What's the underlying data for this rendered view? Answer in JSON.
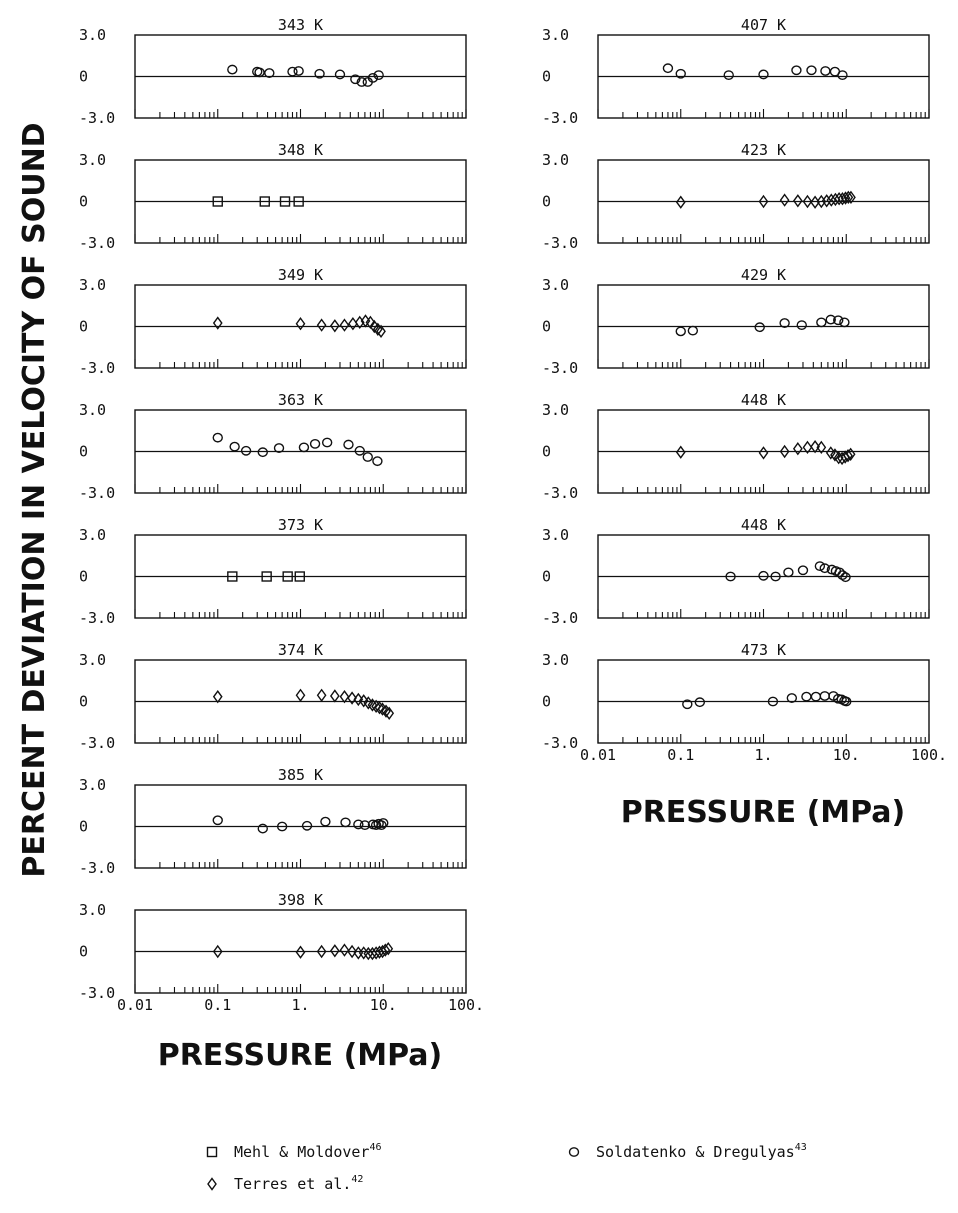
{
  "figure": {
    "ylabel": "PERCENT DEVIATION IN VELOCITY OF SOUND",
    "xlabel_left": "PRESSURE (MPa)",
    "xlabel_right": "PRESSURE (MPa)"
  },
  "axis": {
    "xscale": "log",
    "xlim": [
      0.01,
      100
    ],
    "ylim": [
      -3.0,
      3.0
    ],
    "y_tick_labels": [
      "3.0",
      "0",
      "-3.0"
    ],
    "x_tick_labels": [
      "0.01",
      "0.1",
      "1.",
      "10.",
      "100."
    ]
  },
  "legend": {
    "items": [
      {
        "name": "Mehl & Moldover",
        "ref": "46",
        "marker": "square"
      },
      {
        "name": "Terres et al.",
        "ref": "42",
        "marker": "diamond"
      },
      {
        "name": "Soldatenko & Dregulyas",
        "ref": "43",
        "marker": "circle"
      }
    ]
  },
  "chart_data": [
    {
      "type": "scatter",
      "title": "343 K",
      "marker": "circle",
      "x": [
        0.15,
        0.3,
        0.32,
        0.42,
        0.8,
        0.95,
        1.7,
        3.0,
        4.6,
        5.5,
        6.5,
        7.5,
        8.8
      ],
      "y": [
        0.5,
        0.35,
        0.3,
        0.25,
        0.35,
        0.4,
        0.2,
        0.15,
        -0.2,
        -0.4,
        -0.4,
        -0.1,
        0.1
      ]
    },
    {
      "type": "scatter",
      "title": "348 K",
      "marker": "square",
      "x": [
        0.1,
        0.37,
        0.65,
        0.95
      ],
      "y": [
        0.0,
        0.0,
        0.0,
        0.0
      ]
    },
    {
      "type": "scatter",
      "title": "349 K",
      "marker": "diamond",
      "x": [
        0.1,
        1.0,
        1.8,
        2.6,
        3.4,
        4.3,
        5.2,
        6.1,
        7.0,
        7.8,
        8.6,
        9.4
      ],
      "y": [
        0.25,
        0.2,
        0.1,
        0.05,
        0.1,
        0.2,
        0.3,
        0.4,
        0.3,
        0.0,
        -0.2,
        -0.35
      ]
    },
    {
      "type": "scatter",
      "title": "363 K",
      "marker": "circle",
      "x": [
        0.1,
        0.16,
        0.22,
        0.35,
        0.55,
        1.1,
        1.5,
        2.1,
        3.8,
        5.2,
        6.5,
        8.5
      ],
      "y": [
        1.0,
        0.35,
        0.05,
        -0.05,
        0.25,
        0.3,
        0.55,
        0.65,
        0.5,
        0.05,
        -0.4,
        -0.7
      ]
    },
    {
      "type": "scatter",
      "title": "373 K",
      "marker": "square",
      "x": [
        0.15,
        0.39,
        0.7,
        0.98
      ],
      "y": [
        0.0,
        0.0,
        0.0,
        0.0
      ]
    },
    {
      "type": "scatter",
      "title": "374 K",
      "marker": "diamond",
      "x": [
        0.1,
        1.0,
        1.8,
        2.6,
        3.4,
        4.2,
        5.0,
        5.8,
        6.6,
        7.4,
        8.2,
        9.0,
        9.8,
        10.8,
        11.8
      ],
      "y": [
        0.35,
        0.45,
        0.45,
        0.4,
        0.35,
        0.25,
        0.15,
        0.05,
        -0.1,
        -0.25,
        -0.35,
        -0.45,
        -0.55,
        -0.7,
        -0.85
      ]
    },
    {
      "type": "scatter",
      "title": "385 K",
      "marker": "circle",
      "x": [
        0.1,
        0.35,
        0.6,
        1.2,
        2.0,
        3.5,
        5.0,
        6.0,
        7.5,
        8.2,
        8.8,
        9.5,
        10.0
      ],
      "y": [
        0.45,
        -0.15,
        0.0,
        0.05,
        0.35,
        0.3,
        0.15,
        0.1,
        0.15,
        0.1,
        0.2,
        0.1,
        0.25
      ]
    },
    {
      "type": "scatter",
      "title": "398 K",
      "marker": "diamond",
      "x": [
        0.1,
        1.0,
        1.8,
        2.6,
        3.4,
        4.2,
        5.0,
        5.8,
        6.6,
        7.4,
        8.2,
        9.0,
        9.8,
        10.6,
        11.5
      ],
      "y": [
        0.0,
        -0.05,
        0.0,
        0.05,
        0.1,
        0.0,
        -0.1,
        -0.1,
        -0.15,
        -0.15,
        -0.1,
        -0.05,
        0.0,
        0.1,
        0.2
      ]
    },
    {
      "type": "scatter",
      "title": "407 K",
      "marker": "circle",
      "x": [
        0.07,
        0.1,
        0.38,
        1.0,
        2.5,
        3.8,
        5.6,
        7.3,
        9.0
      ],
      "y": [
        0.6,
        0.2,
        0.1,
        0.15,
        0.45,
        0.45,
        0.4,
        0.35,
        0.1
      ]
    },
    {
      "type": "scatter",
      "title": "423 K",
      "marker": "diamond",
      "x": [
        0.1,
        1.0,
        1.8,
        2.6,
        3.4,
        4.2,
        5.0,
        5.8,
        6.6,
        7.4,
        8.2,
        9.0,
        9.8,
        10.6,
        11.4
      ],
      "y": [
        -0.05,
        0.0,
        0.1,
        0.05,
        0.0,
        -0.05,
        0.0,
        0.05,
        0.1,
        0.15,
        0.2,
        0.2,
        0.25,
        0.3,
        0.3
      ]
    },
    {
      "type": "scatter",
      "title": "429 K",
      "marker": "circle",
      "x": [
        0.1,
        0.14,
        0.9,
        1.8,
        2.9,
        5.0,
        6.5,
        8.0,
        9.5
      ],
      "y": [
        -0.35,
        -0.3,
        -0.05,
        0.25,
        0.1,
        0.3,
        0.5,
        0.45,
        0.3
      ]
    },
    {
      "type": "scatter",
      "title": "448 K",
      "marker": "diamond",
      "x": [
        0.1,
        1.0,
        1.8,
        2.6,
        3.4,
        4.2,
        5.0,
        6.5,
        7.3,
        8.1,
        8.9,
        9.7,
        10.5,
        11.3
      ],
      "y": [
        -0.05,
        -0.1,
        0.0,
        0.2,
        0.3,
        0.35,
        0.3,
        -0.1,
        -0.25,
        -0.45,
        -0.5,
        -0.4,
        -0.3,
        -0.2
      ]
    },
    {
      "type": "scatter",
      "title": "448 K",
      "marker": "circle",
      "x": [
        0.4,
        1.0,
        1.4,
        2.0,
        3.0,
        4.8,
        5.5,
        6.7,
        7.5,
        8.3,
        9.0,
        9.8
      ],
      "y": [
        0.0,
        0.05,
        0.0,
        0.3,
        0.45,
        0.75,
        0.6,
        0.5,
        0.4,
        0.3,
        0.1,
        -0.05
      ]
    },
    {
      "type": "scatter",
      "title": "473 K",
      "marker": "circle",
      "x": [
        0.12,
        0.17,
        1.3,
        2.2,
        3.3,
        4.3,
        5.5,
        7.0,
        8.0,
        8.8,
        9.5,
        10.0
      ],
      "y": [
        -0.2,
        -0.05,
        0.0,
        0.25,
        0.35,
        0.35,
        0.4,
        0.4,
        0.2,
        0.15,
        0.05,
        0.0
      ]
    }
  ]
}
